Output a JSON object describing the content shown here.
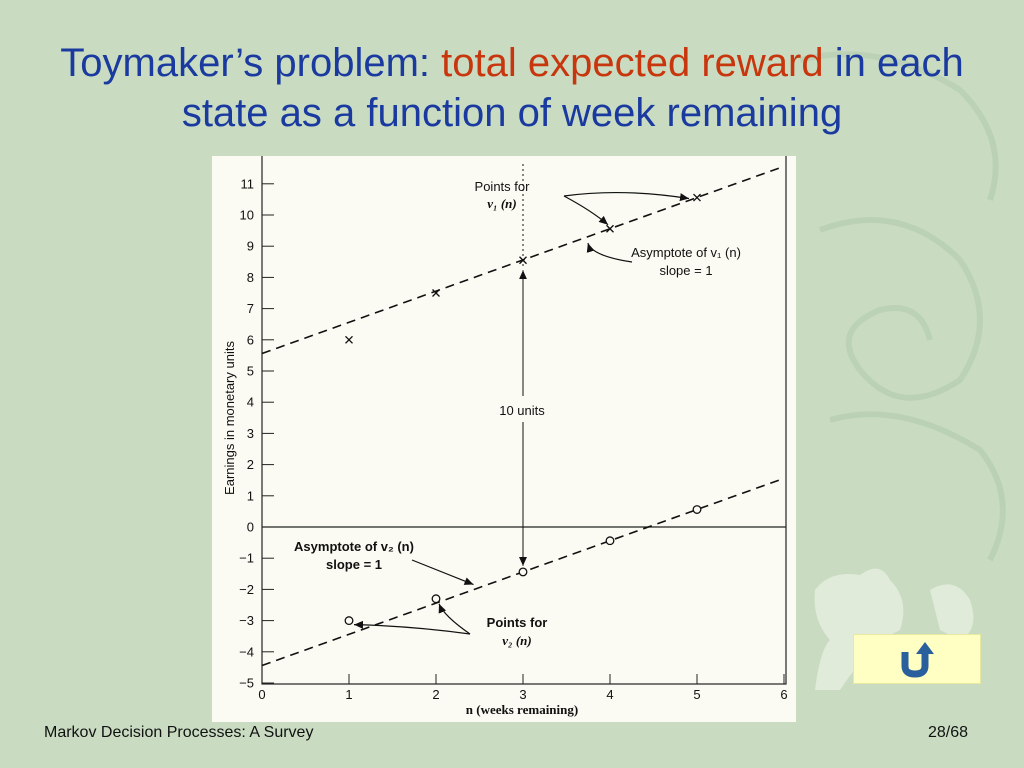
{
  "slide": {
    "title_part1": "Toymaker’s problem: ",
    "title_accent": "total expected reward",
    "title_part2": " in each state as a function of week remaining",
    "footer_left": "Markov Decision Processes: A Survey",
    "footer_right": "28/68"
  },
  "return_button": {
    "icon": "return-u-turn-icon",
    "color": "#2a5f9e"
  },
  "colors": {
    "title": "#1a3aa0",
    "accent": "#c8360e",
    "button_bg": "#ffffc4"
  },
  "chart_data": {
    "type": "scatter",
    "xlabel": "n (weeks remaining)",
    "ylabel": "Earnings in monetary units",
    "xlim": [
      0,
      6
    ],
    "ylim": [
      -5,
      11.5
    ],
    "x_ticks": [
      0,
      1,
      2,
      3,
      4,
      5,
      6
    ],
    "y_ticks": [
      11,
      10,
      9,
      8,
      7,
      6,
      5,
      4,
      3,
      2,
      1,
      0,
      -1,
      -2,
      -3,
      -4,
      -5
    ],
    "y_tick_labels": [
      "11",
      "10",
      "9",
      "8",
      "7",
      "6",
      "5",
      "4",
      "3",
      "2",
      "1",
      "0",
      "−1",
      "−2",
      "−3",
      "−4",
      "−5"
    ],
    "grid": false,
    "series": [
      {
        "name": "v1(n)",
        "marker": "x",
        "x": [
          1,
          2,
          3,
          4,
          5
        ],
        "y": [
          6,
          7.5,
          8.55,
          9.56,
          10.56
        ]
      },
      {
        "name": "v2(n)",
        "marker": "o",
        "x": [
          1,
          2,
          3,
          4,
          5
        ],
        "y": [
          -3,
          -2.3,
          -1.44,
          -0.44,
          0.56
        ]
      }
    ],
    "asymptotes": [
      {
        "series": "v1(n)",
        "intercept": 5.56,
        "slope": 1
      },
      {
        "series": "v2(n)",
        "intercept": -4.44,
        "slope": 1
      }
    ],
    "annotations": {
      "v1_points_line1": "Points for",
      "v1_points_line2": "v₁ (n)",
      "v1_asym_line1": "Asymptote of v₁ (n)",
      "v1_asym_line2": "slope = 1",
      "gap_label": "10 units",
      "v2_asym_line1": "Asymptote of v₂ (n)",
      "v2_asym_line2": "slope = 1",
      "v2_points_line1": "Points for",
      "v2_points_line2": "v₂ (n)"
    }
  }
}
